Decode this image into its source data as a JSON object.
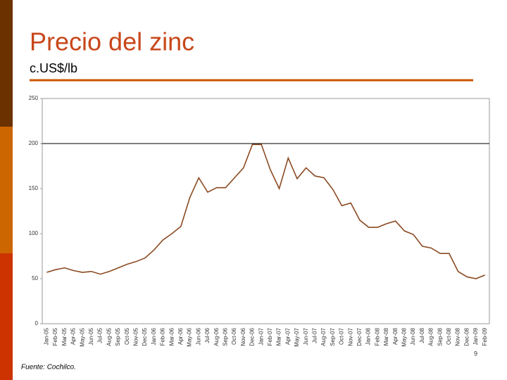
{
  "chart_data": {
    "type": "line",
    "title": "Precio del zinc",
    "subtitle": "c.US$/lb",
    "source": "Fuente: Cochilco.",
    "page_number": "9",
    "categories": [
      "Jan-05",
      "Feb-05",
      "Mar-05",
      "Apr-05",
      "May-05",
      "Jun-05",
      "Jul-05",
      "Aug-05",
      "Sep-05",
      "Oct-05",
      "Nov-05",
      "Dec-05",
      "Jan-06",
      "Feb-06",
      "Mar-06",
      "Apr-06",
      "May-06",
      "Jun-06",
      "Jul-06",
      "Aug-06",
      "Sep-06",
      "Oct-06",
      "Nov-06",
      "Dec-06",
      "Jan-07",
      "Feb-07",
      "Mar-07",
      "Apr-07",
      "May-07",
      "Jun-07",
      "Jul-07",
      "Aug-07",
      "Sep-07",
      "Oct-07",
      "Nov-07",
      "Dec-07",
      "Jan-08",
      "Feb-08",
      "Mar-08",
      "Apr-08",
      "May-08",
      "Jun-08",
      "Jul-08",
      "Aug-08",
      "Sep-08",
      "Oct-08",
      "Nov-08",
      "Dec-08",
      "Jan-09",
      "Feb-09"
    ],
    "series": [
      {
        "name": "Zinc",
        "color": "#8b4a22",
        "values": [
          57,
          60,
          62,
          59,
          57,
          58,
          55,
          58,
          62,
          66,
          69,
          73,
          82,
          93,
          100,
          108,
          140,
          162,
          146,
          151,
          151,
          162,
          173,
          199,
          199,
          171,
          150,
          184,
          161,
          173,
          164,
          162,
          149,
          131,
          134,
          115,
          107,
          107,
          111,
          114,
          103,
          99,
          86,
          84,
          78,
          78,
          58,
          52,
          50,
          54
        ]
      }
    ],
    "ylim": [
      0,
      250
    ],
    "yticks": [
      0,
      50,
      100,
      150,
      200,
      250
    ],
    "reference_line": 200
  }
}
